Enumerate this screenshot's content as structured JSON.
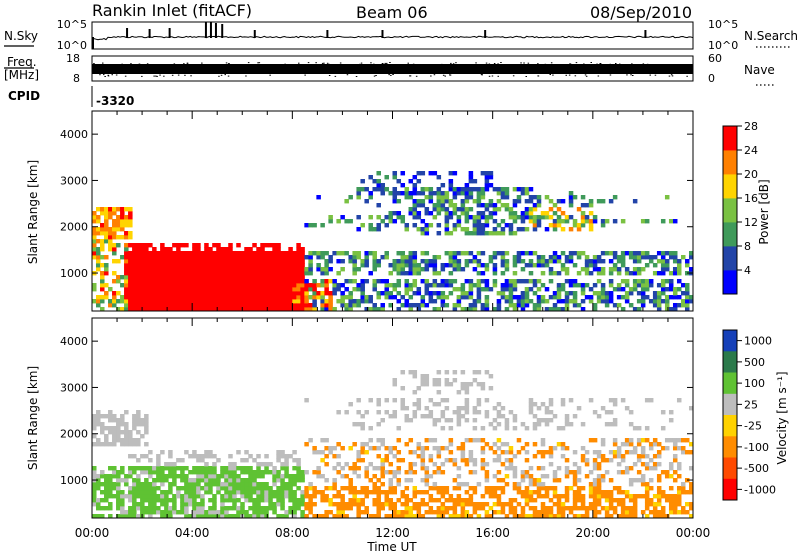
{
  "header": {
    "station": "Rankin Inlet (fitACF)",
    "beam": "Beam 06",
    "date": "08/Sep/2010"
  },
  "params": {
    "nsky_label": "N.Sky",
    "nsearch_label": "N.Search",
    "freq_label": "Freq.",
    "freq_unit": "[MHz]",
    "nave_label": "Nave",
    "cpid_label": "CPID",
    "cpid_value": "-3320",
    "left_ticks": {
      "nsky_top": "10^5",
      "nsky_bottom": "10^0",
      "freq_top": "18",
      "freq_bottom": "8"
    },
    "right_ticks": {
      "nsearch_top": "10^5",
      "nsearch_bottom": "10^0",
      "nave_top": "60",
      "nave_bottom": "0"
    }
  },
  "chart_data": [
    {
      "type": "heatmap",
      "name": "power",
      "xlabel": "",
      "ylabel": "Slant Range [km]",
      "xlim": [
        0,
        24
      ],
      "ylim": [
        180,
        4500
      ],
      "yticks": [
        "1000",
        "2000",
        "3000",
        "4000"
      ],
      "colorbar_label": "Power [dB]",
      "colorbar_ticks": [
        "4",
        "8",
        "12",
        "16",
        "20",
        "24",
        "28"
      ],
      "colors": [
        "#0000ff",
        "#2244a8",
        "#3f9a5a",
        "#7ac142",
        "#ffd400",
        "#ff8000",
        "#ff0000"
      ]
    },
    {
      "type": "heatmap",
      "name": "velocity",
      "xlabel": "Time UT",
      "ylabel": "Slant Range [km]",
      "xlim": [
        0,
        24
      ],
      "ylim": [
        180,
        4500
      ],
      "xticks": [
        "00:00",
        "04:00",
        "08:00",
        "12:00",
        "16:00",
        "20:00",
        "00:00"
      ],
      "yticks": [
        "1000",
        "2000",
        "3000",
        "4000"
      ],
      "colorbar_label": "Velocity [m s⁻¹]",
      "colorbar_ticks": [
        "1000",
        "500",
        "100",
        "25",
        "-25",
        "-100",
        "-500",
        "-1000"
      ],
      "colors": [
        "#1540b8",
        "#2b7a4b",
        "#5fc233",
        "#bdbdbd",
        "#ffd200",
        "#ff8c00",
        "#ff4a00",
        "#ff0000"
      ]
    }
  ]
}
